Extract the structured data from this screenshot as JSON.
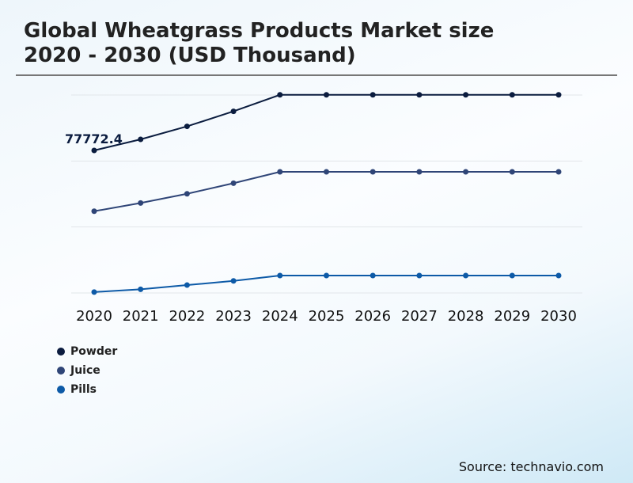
{
  "title_line1": "Global Wheatgrass Products Market size",
  "title_line2": "2020 - 2030 (USD Thousand)",
  "source": "Source: technavio.com",
  "chart_data": {
    "type": "line",
    "title": "Global Wheatgrass Products Market size 2020 - 2030 (USD Thousand)",
    "categories": [
      "2020",
      "2021",
      "2022",
      "2023",
      "2024",
      "2025",
      "2026",
      "2027",
      "2028",
      "2029",
      "2030"
    ],
    "ylim": [
      0,
      108000
    ],
    "grid": true,
    "legend_placement": "bottom-left",
    "series": [
      {
        "name": "Powder",
        "color": "#0b1c3f",
        "values": [
          77772.4,
          83800,
          90900,
          99100,
          108100,
          108100,
          108100,
          108100,
          108100,
          108100,
          108100
        ]
      },
      {
        "name": "Juice",
        "color": "#2f4577",
        "values": [
          44600,
          49100,
          54100,
          59900,
          66100,
          66100,
          66100,
          66100,
          66100,
          66100,
          66100
        ]
      },
      {
        "name": "Pills",
        "color": "#0d5aa7",
        "values": [
          500,
          2000,
          4300,
          6600,
          9500,
          9500,
          9500,
          9500,
          9500,
          9500,
          9500
        ]
      }
    ],
    "data_labels": [
      {
        "series": "Powder",
        "category": "2020",
        "text": "77772.4"
      }
    ]
  }
}
